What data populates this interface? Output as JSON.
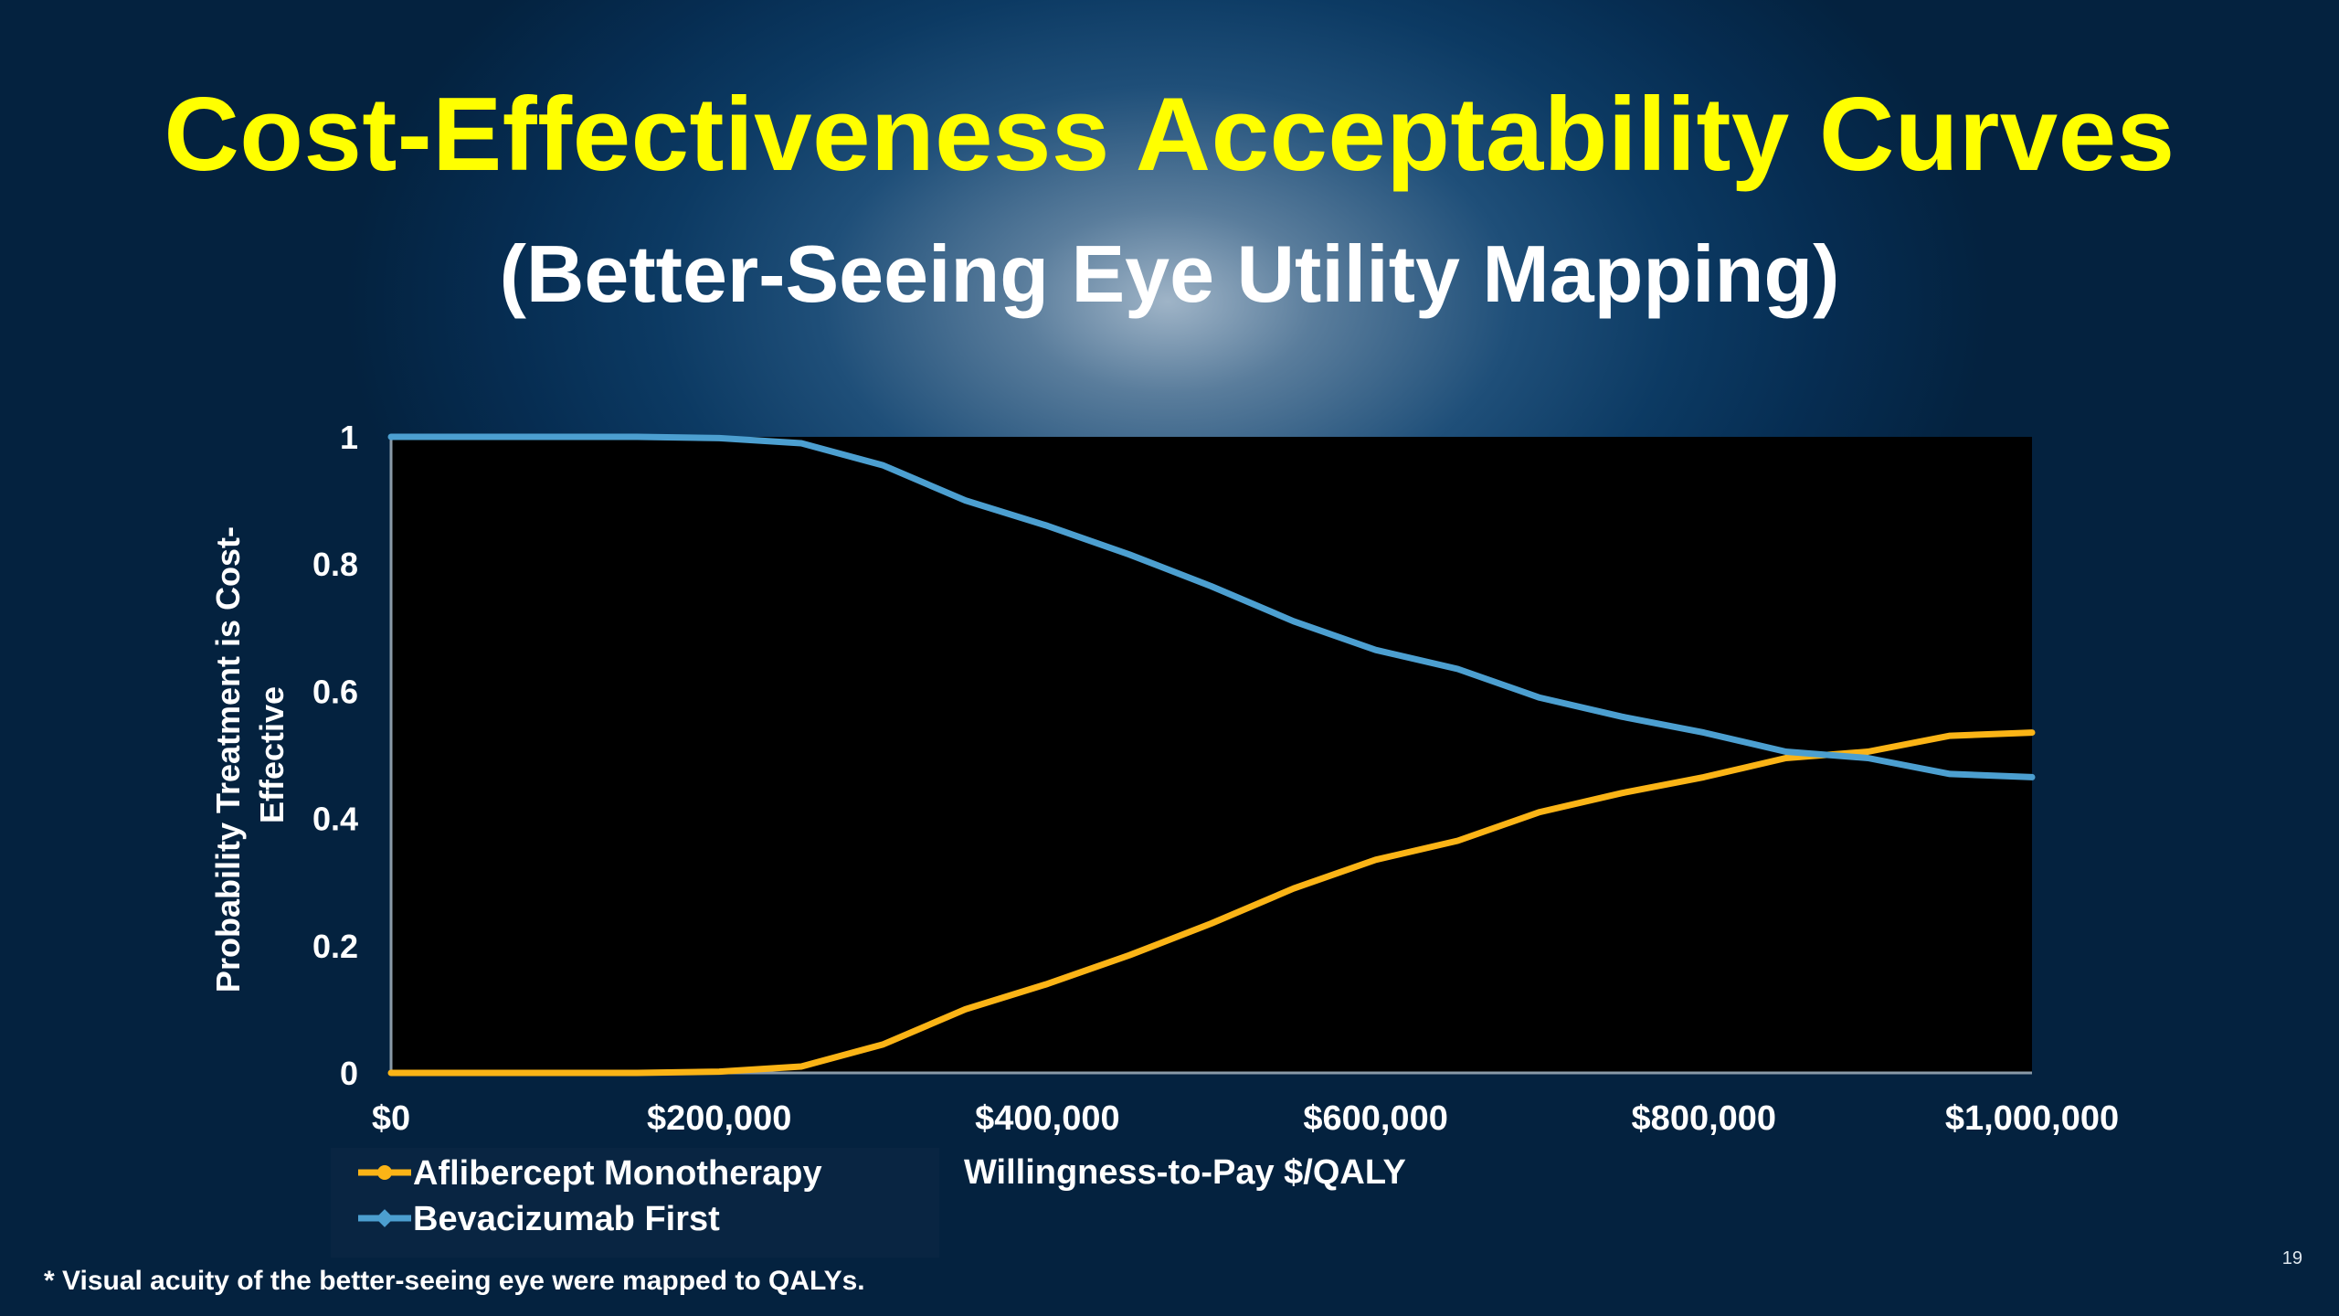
{
  "slide": {
    "title": "Cost-Effectiveness Acceptability Curves",
    "subtitle": "(Better-Seeing Eye Utility Mapping)",
    "footnote": "* Visual acuity of the better-seeing eye were mapped to QALYs.",
    "slide_number": "19"
  },
  "colors": {
    "title": "#ffff00",
    "plot_background": "#000000",
    "aflibercept": "#fbb416",
    "bevacizumab": "#4c9fd0"
  },
  "chart_data": {
    "type": "line",
    "xlabel": "Willingness-to-Pay $/QALY",
    "ylabel_lines": [
      "Probability Treatment is Cost-",
      "Effective"
    ],
    "xlim": [
      0,
      1000000
    ],
    "ylim": [
      0,
      1
    ],
    "x_ticks": [
      0,
      200000,
      400000,
      600000,
      800000,
      1000000
    ],
    "x_tick_labels": [
      "$0",
      "$200,000",
      "$400,000",
      "$600,000",
      "$800,000",
      "$1,000,000"
    ],
    "y_ticks": [
      0,
      0.2,
      0.4,
      0.6,
      0.8,
      1
    ],
    "y_tick_labels": [
      "0",
      "0.2",
      "0.4",
      "0.6",
      "0.8",
      "1"
    ],
    "legend_position": "bottom-left",
    "grid": false,
    "x": [
      0,
      50000,
      100000,
      150000,
      200000,
      250000,
      300000,
      350000,
      400000,
      450000,
      500000,
      550000,
      600000,
      650000,
      700000,
      750000,
      800000,
      850000,
      900000,
      950000,
      1000000
    ],
    "series": [
      {
        "name": "Aflibercept Monotherapy",
        "color": "#fbb416",
        "values": [
          0,
          0,
          0,
          0,
          0.002,
          0.01,
          0.045,
          0.1,
          0.14,
          0.185,
          0.235,
          0.29,
          0.335,
          0.365,
          0.41,
          0.44,
          0.465,
          0.495,
          0.505,
          0.53,
          0.535
        ]
      },
      {
        "name": "Bevacizumab First",
        "color": "#4c9fd0",
        "values": [
          1,
          1,
          1,
          1,
          0.998,
          0.99,
          0.955,
          0.9,
          0.86,
          0.815,
          0.765,
          0.71,
          0.665,
          0.635,
          0.59,
          0.56,
          0.535,
          0.505,
          0.495,
          0.47,
          0.465
        ]
      }
    ]
  }
}
